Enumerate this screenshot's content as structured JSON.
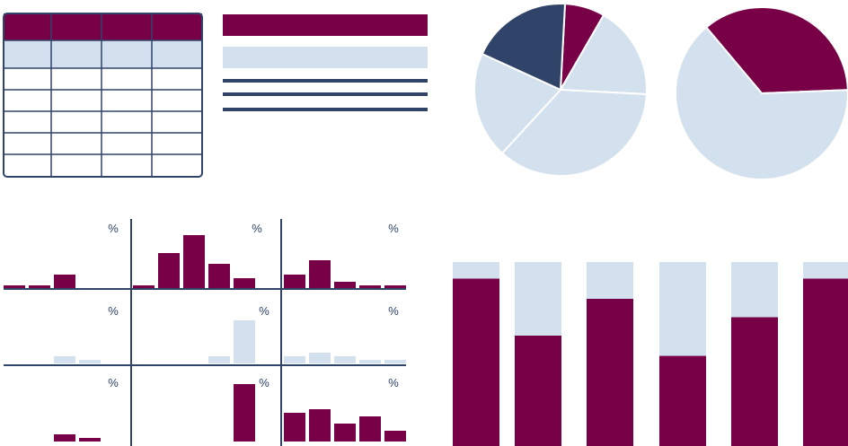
{
  "colors": {
    "primary": "#780046",
    "light": "#d3e0ee",
    "navy": "#30446a",
    "white": "#ffffff"
  },
  "table": {
    "header_row_color": "primary",
    "highlight_row_color": "light",
    "columns": 4,
    "body_rows": 5
  },
  "legend_bars": [
    {
      "kind": "solid",
      "color": "primary"
    },
    {
      "kind": "solid",
      "color": "light"
    },
    {
      "kind": "line",
      "color": "navy"
    },
    {
      "kind": "line",
      "color": "navy"
    },
    {
      "kind": "line",
      "color": "navy"
    }
  ],
  "chart_data": [
    {
      "type": "pie",
      "slices": [
        {
          "color": "primary",
          "value": 7.5
        },
        {
          "color": "light",
          "value": 17.5
        },
        {
          "color": "light",
          "value": 36
        },
        {
          "color": "light",
          "value": 20
        },
        {
          "color": "navy",
          "value": 19
        }
      ]
    },
    {
      "type": "pie",
      "slices": [
        {
          "color": "primary",
          "value": 35.5
        },
        {
          "color": "light",
          "value": 64.5
        }
      ]
    },
    {
      "type": "bar",
      "panels": [
        {
          "unit": "%",
          "color": "primary",
          "values": [
            1,
            1,
            4,
            0,
            0
          ]
        },
        {
          "unit": "%",
          "color": "primary",
          "values": [
            1,
            10,
            15,
            7,
            3
          ]
        },
        {
          "unit": "%",
          "color": "primary",
          "values": [
            4,
            8,
            2,
            1,
            1
          ]
        },
        {
          "unit": "%",
          "color": "light",
          "values": [
            0,
            0,
            2,
            1,
            0
          ]
        },
        {
          "unit": "%",
          "color": "light",
          "values": [
            0,
            0,
            0,
            2,
            12
          ]
        },
        {
          "unit": "%",
          "color": "light",
          "values": [
            2,
            3,
            2,
            1,
            1
          ]
        },
        {
          "unit": "%",
          "color": "primary",
          "values": [
            0,
            0,
            2,
            1,
            0
          ]
        },
        {
          "unit": "%",
          "color": "primary",
          "values": [
            0,
            0,
            0,
            0,
            16
          ]
        },
        {
          "unit": "%",
          "color": "primary",
          "values": [
            8,
            9,
            5,
            7,
            3
          ]
        }
      ]
    },
    {
      "type": "bar",
      "stacked": true,
      "series": [
        {
          "color": "primary",
          "values": [
            91,
            60,
            80,
            49,
            70,
            91
          ]
        },
        {
          "color": "light",
          "values": [
            9,
            40,
            20,
            51,
            30,
            9
          ]
        }
      ]
    }
  ]
}
